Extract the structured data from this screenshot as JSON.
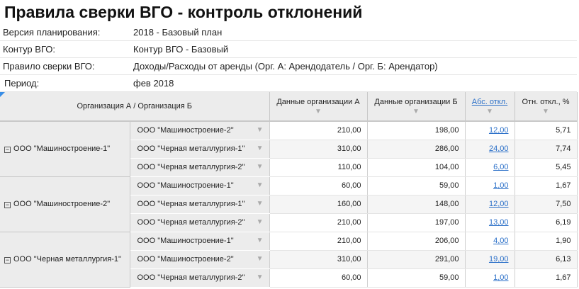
{
  "title": "Правила сверки ВГО - контроль отклонений",
  "info": [
    {
      "label": "Версия планирования:",
      "value": "2018 - Базовый план"
    },
    {
      "label": "Контур ВГО:",
      "value": "Контур ВГО - Базовый"
    },
    {
      "label": "Правило сверки ВГО:",
      "value": "Доходы/Расходы от аренды (Орг. А: Арендодатель / Орг. Б: Арендатор)"
    },
    {
      "label": "Период:",
      "value": "фев 2018"
    }
  ],
  "table": {
    "headers": {
      "org": "Организация А / Организация Б",
      "a": "Данные организации А",
      "b": "Данные организации Б",
      "abs": "Абс. откл.",
      "rel": "Отн. откл., %"
    },
    "groups": [
      {
        "org": "ООО \"Машиностроение-1\"",
        "rows": [
          {
            "org_b": "ООО \"Машиностроение-2\"",
            "a": "210,00",
            "b": "198,00",
            "abs": "12,00",
            "rel": "5,71"
          },
          {
            "org_b": "ООО \"Черная металлургия-1\"",
            "a": "310,00",
            "b": "286,00",
            "abs": "24,00",
            "rel": "7,74"
          },
          {
            "org_b": "ООО \"Черная металлургия-2\"",
            "a": "110,00",
            "b": "104,00",
            "abs": "6,00",
            "rel": "5,45"
          }
        ]
      },
      {
        "org": "ООО \"Машиностроение-2\"",
        "rows": [
          {
            "org_b": "ООО \"Машиностроение-1\"",
            "a": "60,00",
            "b": "59,00",
            "abs": "1,00",
            "rel": "1,67"
          },
          {
            "org_b": "ООО \"Черная металлургия-1\"",
            "a": "160,00",
            "b": "148,00",
            "abs": "12,00",
            "rel": "7,50"
          },
          {
            "org_b": "ООО \"Черная металлургия-2\"",
            "a": "210,00",
            "b": "197,00",
            "abs": "13,00",
            "rel": "6,19"
          }
        ]
      },
      {
        "org": "ООО \"Черная металлургия-1\"",
        "rows": [
          {
            "org_b": "ООО \"Машиностроение-1\"",
            "a": "210,00",
            "b": "206,00",
            "abs": "4,00",
            "rel": "1,90"
          },
          {
            "org_b": "ООО \"Машиностроение-2\"",
            "a": "310,00",
            "b": "291,00",
            "abs": "19,00",
            "rel": "6,13"
          },
          {
            "org_b": "ООО \"Черная металлургия-2\"",
            "a": "60,00",
            "b": "59,00",
            "abs": "1,00",
            "rel": "1,67"
          }
        ]
      }
    ]
  }
}
